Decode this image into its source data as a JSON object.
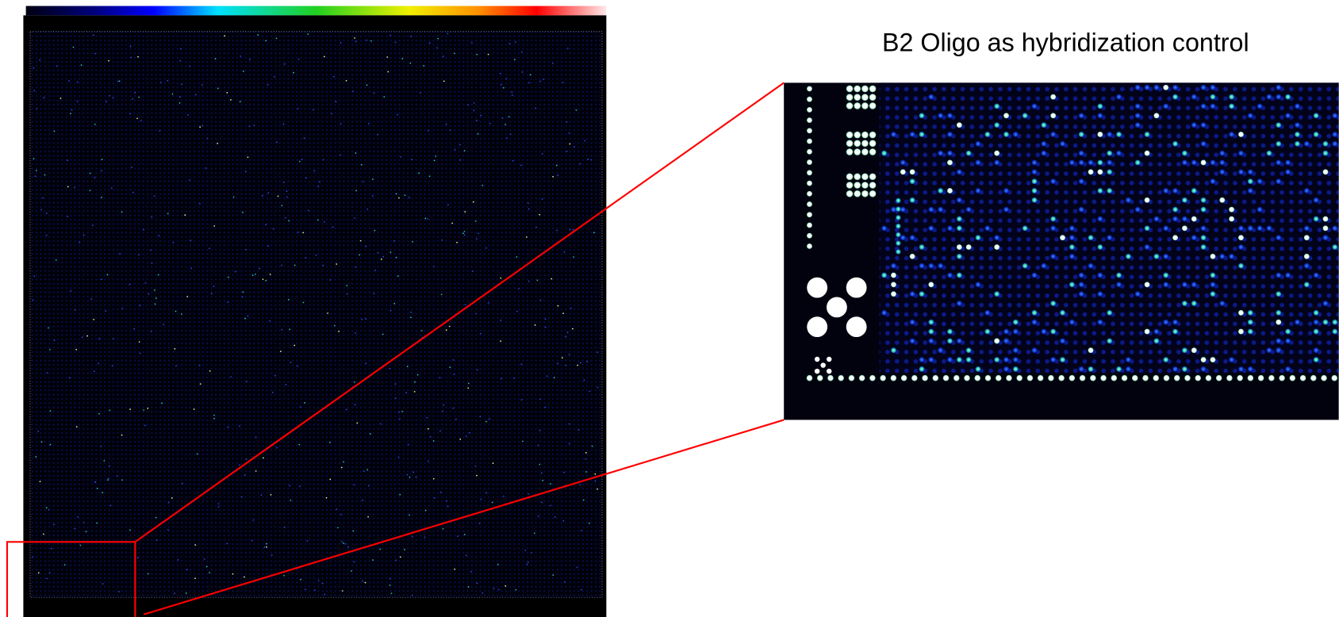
{
  "caption": {
    "text": "B2 Oligo as hybridization control"
  }
}
